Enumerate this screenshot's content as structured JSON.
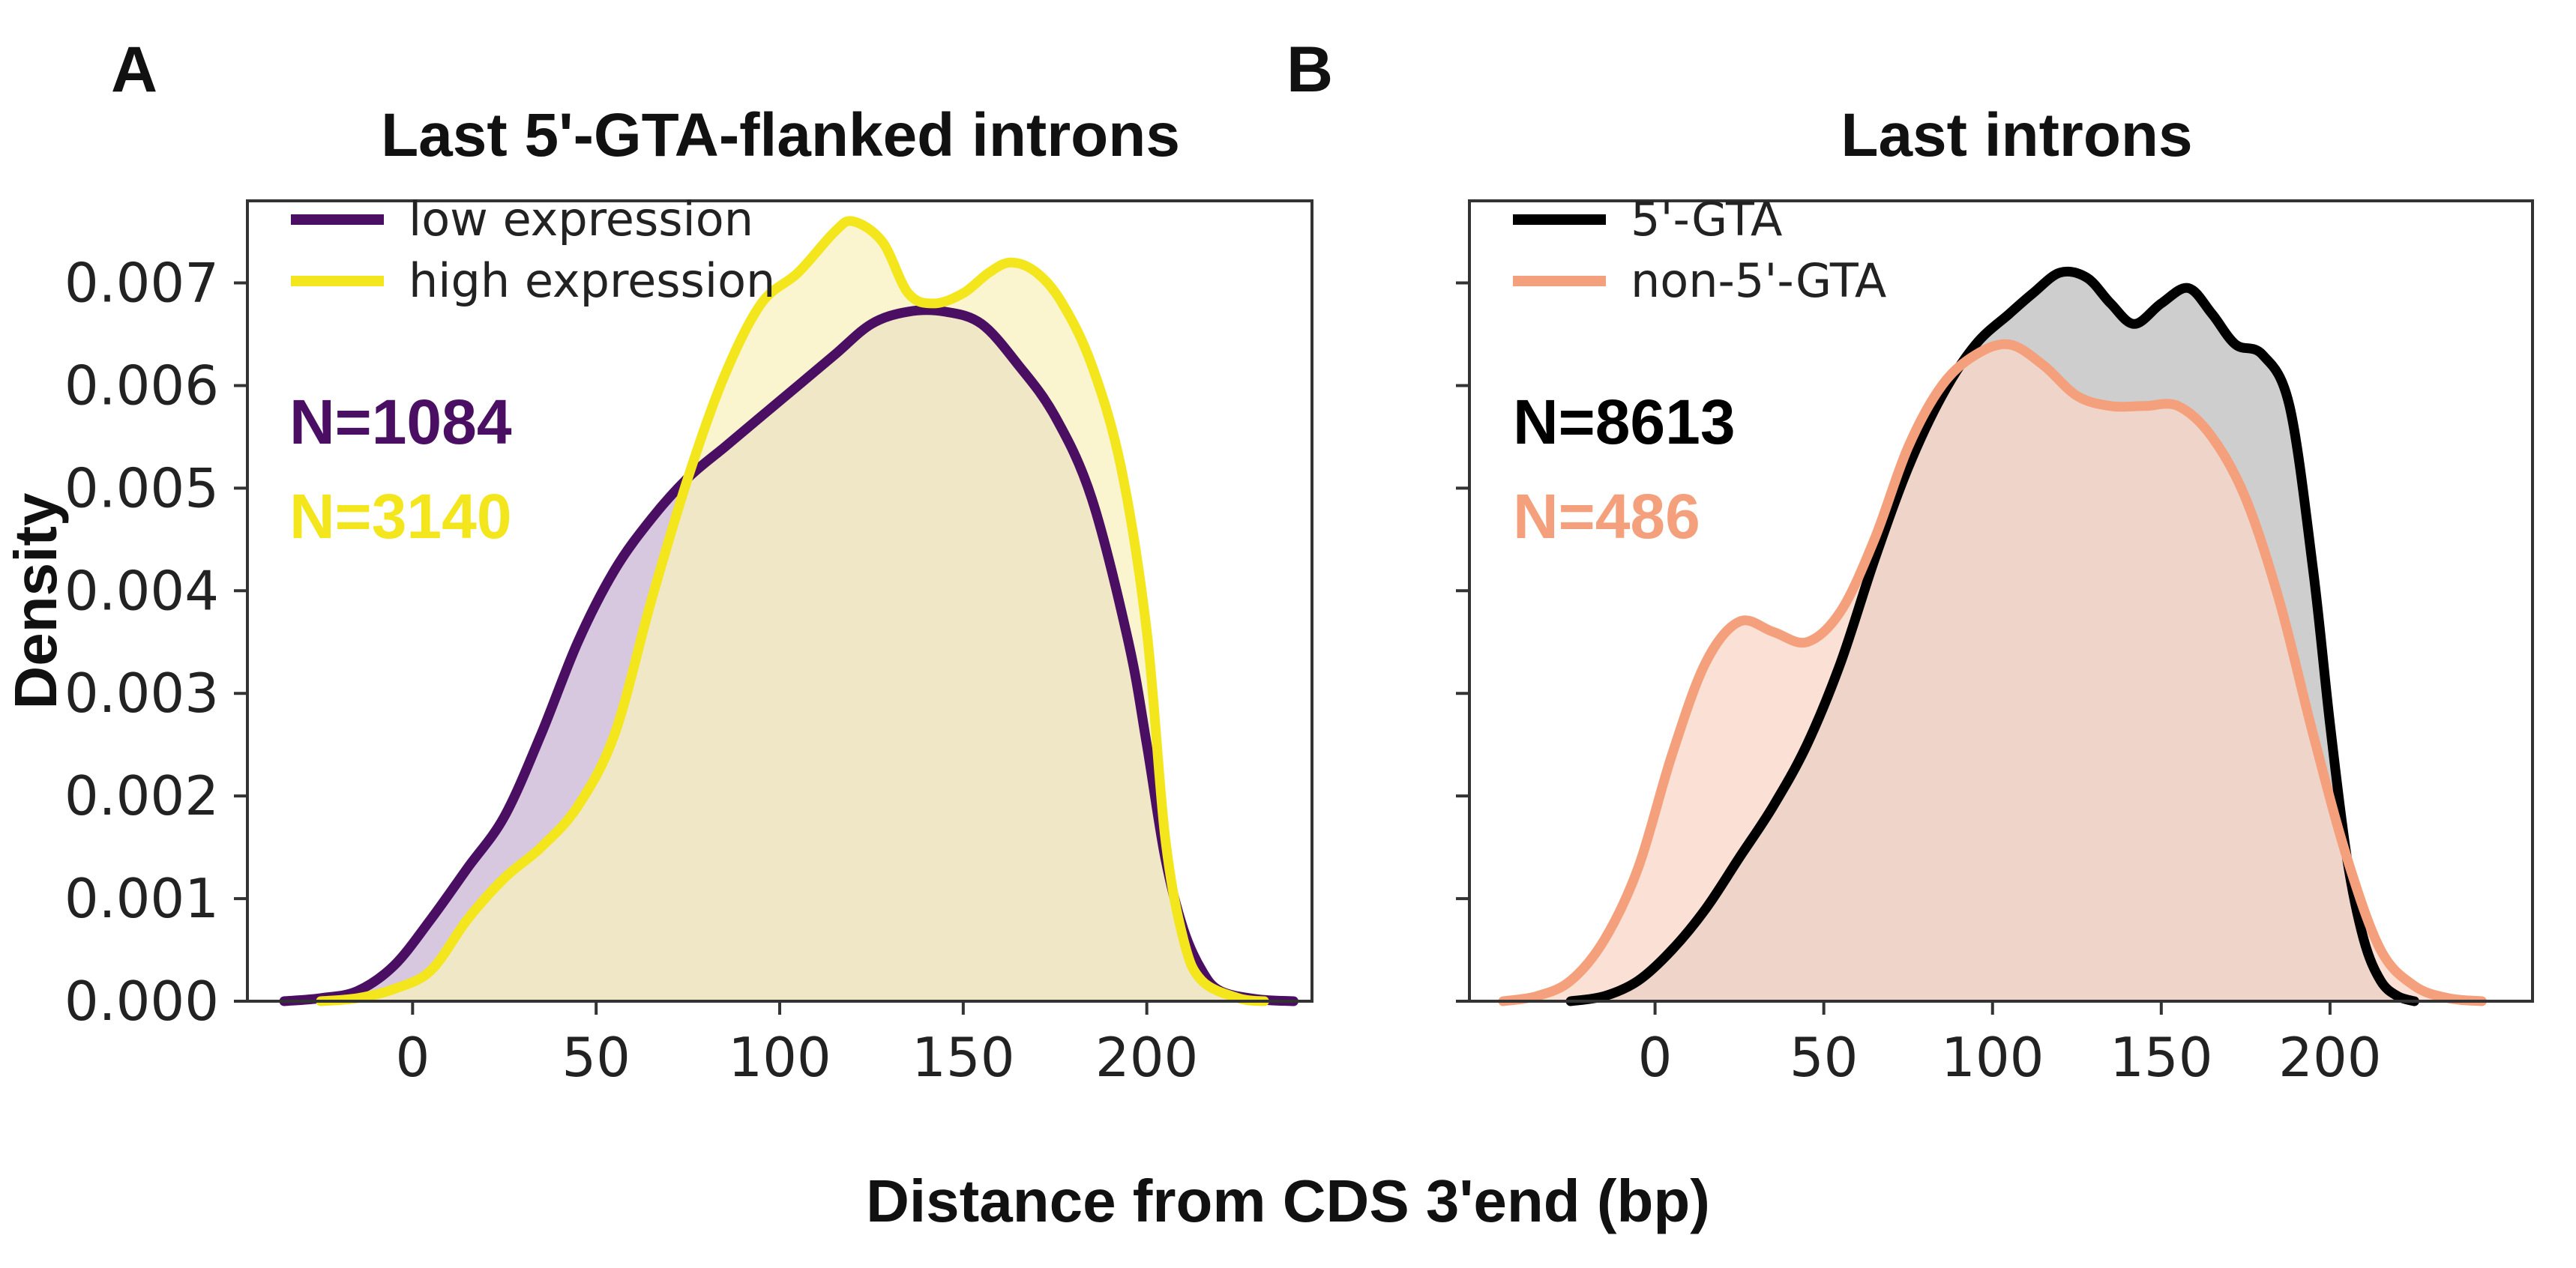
{
  "figure": {
    "xlabel": "Distance from CDS 3'end (bp)",
    "ylabel": "Density"
  },
  "chart_data": [
    {
      "type": "area",
      "panel_label": "A",
      "title": "Last 5'-GTA-flanked introns",
      "xlim": [
        -45,
        245
      ],
      "ylim": [
        0,
        0.0078
      ],
      "x_ticks": [
        0,
        50,
        100,
        150,
        200
      ],
      "x_tick_labels": [
        "0",
        "50",
        "100",
        "150",
        "200"
      ],
      "y_ticks": [
        0,
        0.001,
        0.002,
        0.003,
        0.004,
        0.005,
        0.006,
        0.007
      ],
      "y_tick_labels": [
        "0.000",
        "0.001",
        "0.002",
        "0.003",
        "0.004",
        "0.005",
        "0.006",
        "0.007"
      ],
      "legend_position": "top-left",
      "series": [
        {
          "name": "low expression",
          "color": "#4a0f63",
          "fill": "#c9b6d6",
          "n_label": "N=1084",
          "x": [
            -35,
            -25,
            -15,
            -5,
            5,
            15,
            25,
            35,
            45,
            55,
            65,
            75,
            85,
            95,
            105,
            115,
            125,
            135,
            145,
            155,
            165,
            175,
            185,
            195,
            200,
            205,
            210,
            215,
            220,
            230,
            240
          ],
          "y": [
            0,
            3e-05,
            0.0001,
            0.00035,
            0.0008,
            0.0013,
            0.0018,
            0.0026,
            0.0035,
            0.0042,
            0.0047,
            0.0051,
            0.0054,
            0.0057,
            0.006,
            0.0063,
            0.0066,
            0.00672,
            0.00672,
            0.0066,
            0.0062,
            0.0057,
            0.0049,
            0.0035,
            0.0025,
            0.0014,
            0.0007,
            0.0003,
            0.0001,
            2e-05,
            0
          ]
        },
        {
          "name": "high expression",
          "color": "#f3e61c",
          "fill": "#f8f1bd",
          "n_label": "N=3140",
          "x": [
            -25,
            -15,
            -5,
            5,
            15,
            25,
            35,
            45,
            55,
            65,
            75,
            85,
            95,
            105,
            115,
            120,
            128,
            135,
            142,
            150,
            157,
            163,
            170,
            177,
            185,
            193,
            200,
            205,
            210,
            215,
            225,
            232
          ],
          "y": [
            0,
            3e-05,
            0.00012,
            0.0003,
            0.0008,
            0.0012,
            0.0015,
            0.0019,
            0.0026,
            0.0039,
            0.0051,
            0.0061,
            0.0068,
            0.0071,
            0.0075,
            0.0076,
            0.0074,
            0.0069,
            0.0068,
            0.0069,
            0.0071,
            0.0072,
            0.0071,
            0.0068,
            0.0062,
            0.0052,
            0.0036,
            0.0016,
            0.0006,
            0.0002,
            3e-05,
            0
          ]
        }
      ]
    },
    {
      "type": "area",
      "panel_label": "B",
      "title": "Last introns",
      "xlim": [
        -55,
        260
      ],
      "ylim": [
        0,
        0.0078
      ],
      "x_ticks": [
        0,
        50,
        100,
        150,
        200
      ],
      "x_tick_labels": [
        "0",
        "50",
        "100",
        "150",
        "200"
      ],
      "y_ticks": [
        0,
        0.001,
        0.002,
        0.003,
        0.004,
        0.005,
        0.006,
        0.007
      ],
      "legend_position": "top-left",
      "series": [
        {
          "name": "5'-GTA",
          "color": "#000000",
          "fill": "#bdbdbd",
          "n_label": "N=8613",
          "x": [
            -25,
            -15,
            -5,
            5,
            15,
            25,
            35,
            45,
            55,
            65,
            75,
            85,
            95,
            105,
            112,
            120,
            128,
            135,
            142,
            150,
            158,
            165,
            172,
            180,
            188,
            195,
            200,
            205,
            210,
            215,
            220,
            225
          ],
          "y": [
            0,
            5e-05,
            0.0002,
            0.0005,
            0.0009,
            0.0014,
            0.0019,
            0.0025,
            0.0033,
            0.0043,
            0.0052,
            0.0059,
            0.0064,
            0.0067,
            0.0069,
            0.0071,
            0.00705,
            0.0068,
            0.0066,
            0.0068,
            0.00695,
            0.0067,
            0.0064,
            0.0063,
            0.0058,
            0.0042,
            0.0027,
            0.0014,
            0.0006,
            0.0002,
            5e-05,
            0
          ]
        },
        {
          "name": "non-5'-GTA",
          "color": "#f4a07c",
          "fill": "#f9d7c7",
          "n_label": "N=486",
          "x": [
            -45,
            -35,
            -25,
            -15,
            -5,
            5,
            15,
            25,
            35,
            45,
            55,
            65,
            75,
            85,
            95,
            105,
            115,
            125,
            135,
            145,
            155,
            165,
            175,
            185,
            195,
            205,
            215,
            225,
            235,
            245
          ],
          "y": [
            0,
            5e-05,
            0.0002,
            0.0006,
            0.0013,
            0.0024,
            0.0033,
            0.0037,
            0.0036,
            0.0035,
            0.0038,
            0.0045,
            0.0054,
            0.006,
            0.0063,
            0.0064,
            0.0062,
            0.0059,
            0.0058,
            0.0058,
            0.0058,
            0.0055,
            0.0049,
            0.0039,
            0.0026,
            0.0014,
            0.0005,
            0.00015,
            3e-05,
            0
          ]
        }
      ]
    }
  ]
}
